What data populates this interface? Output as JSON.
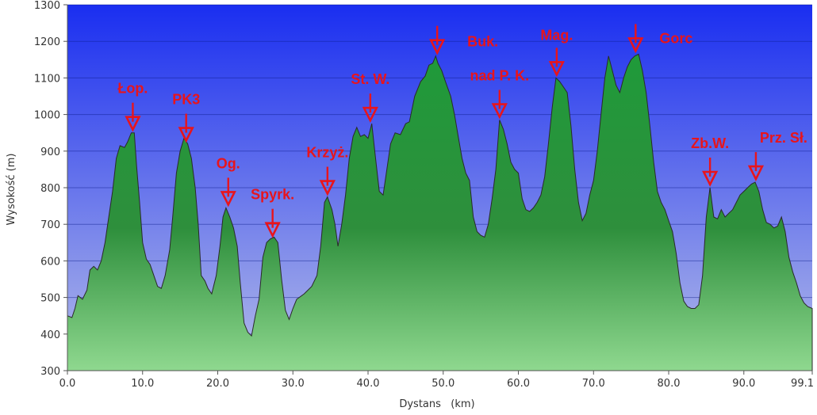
{
  "chart_data": {
    "type": "area",
    "xlabel": "Dystans   (km)",
    "ylabel": "Wysokość (m)",
    "xlim": [
      0,
      99.1
    ],
    "ylim": [
      300,
      1300
    ],
    "x_ticks": [
      {
        "v": 0,
        "label": "0.0"
      },
      {
        "v": 10,
        "label": "10.0"
      },
      {
        "v": 20,
        "label": "20.0"
      },
      {
        "v": 30,
        "label": "30.0"
      },
      {
        "v": 40,
        "label": "40.0"
      },
      {
        "v": 50,
        "label": "50.0"
      },
      {
        "v": 60,
        "label": "60.0"
      },
      {
        "v": 70,
        "label": "70.0"
      },
      {
        "v": 80,
        "label": "80.0"
      },
      {
        "v": 90,
        "label": "90.0"
      },
      {
        "v": 99.1,
        "label": "99.1"
      }
    ],
    "y_ticks": [
      300,
      400,
      500,
      600,
      700,
      800,
      900,
      1000,
      1100,
      1200,
      1300
    ],
    "grid": true,
    "colors": {
      "plot_bg_top": "#1a2ef0",
      "plot_bg_bottom": "#b4bce8",
      "fill_top": "#1f9a3a",
      "fill_bottom": "#8fd88f",
      "line": "#2a2a2a",
      "annotation": "#e8141c"
    },
    "profile": [
      [
        0,
        450
      ],
      [
        0.6,
        445
      ],
      [
        1,
        470
      ],
      [
        1.4,
        505
      ],
      [
        2,
        495
      ],
      [
        2.6,
        520
      ],
      [
        3,
        575
      ],
      [
        3.5,
        585
      ],
      [
        4,
        575
      ],
      [
        4.5,
        600
      ],
      [
        5,
        650
      ],
      [
        5.5,
        720
      ],
      [
        6,
        790
      ],
      [
        6.5,
        880
      ],
      [
        7,
        915
      ],
      [
        7.6,
        910
      ],
      [
        8,
        925
      ],
      [
        8.5,
        950
      ],
      [
        8.9,
        950
      ],
      [
        9.2,
        860
      ],
      [
        9.6,
        760
      ],
      [
        10,
        650
      ],
      [
        10.5,
        605
      ],
      [
        11,
        590
      ],
      [
        11.5,
        560
      ],
      [
        12,
        530
      ],
      [
        12.5,
        525
      ],
      [
        13,
        560
      ],
      [
        13.6,
        630
      ],
      [
        14,
        720
      ],
      [
        14.5,
        840
      ],
      [
        15,
        900
      ],
      [
        15.5,
        935
      ],
      [
        16,
        920
      ],
      [
        16.5,
        880
      ],
      [
        17,
        800
      ],
      [
        17.4,
        700
      ],
      [
        17.8,
        560
      ],
      [
        18.3,
        545
      ],
      [
        18.7,
        525
      ],
      [
        19.2,
        510
      ],
      [
        19.8,
        560
      ],
      [
        20.3,
        640
      ],
      [
        20.7,
        720
      ],
      [
        21.1,
        745
      ],
      [
        21.6,
        720
      ],
      [
        22.1,
        690
      ],
      [
        22.6,
        640
      ],
      [
        23,
        540
      ],
      [
        23.5,
        430
      ],
      [
        24,
        405
      ],
      [
        24.5,
        395
      ],
      [
        25,
        450
      ],
      [
        25.5,
        495
      ],
      [
        26,
        610
      ],
      [
        26.5,
        650
      ],
      [
        27,
        660
      ],
      [
        27.5,
        665
      ],
      [
        28,
        650
      ],
      [
        28.5,
        550
      ],
      [
        29,
        465
      ],
      [
        29.5,
        440
      ],
      [
        30,
        470
      ],
      [
        30.5,
        495
      ],
      [
        31.5,
        510
      ],
      [
        32.5,
        530
      ],
      [
        33.2,
        560
      ],
      [
        33.7,
        640
      ],
      [
        34.2,
        760
      ],
      [
        34.6,
        775
      ],
      [
        35.2,
        740
      ],
      [
        35.6,
        700
      ],
      [
        36,
        640
      ],
      [
        36.5,
        700
      ],
      [
        37,
        780
      ],
      [
        37.5,
        880
      ],
      [
        38,
        940
      ],
      [
        38.5,
        965
      ],
      [
        39,
        940
      ],
      [
        39.5,
        945
      ],
      [
        40,
        935
      ],
      [
        40.5,
        975
      ],
      [
        41,
        880
      ],
      [
        41.5,
        790
      ],
      [
        42,
        780
      ],
      [
        42.5,
        850
      ],
      [
        43,
        920
      ],
      [
        43.6,
        950
      ],
      [
        44.3,
        945
      ],
      [
        45,
        975
      ],
      [
        45.5,
        980
      ],
      [
        46.2,
        1050
      ],
      [
        47,
        1090
      ],
      [
        47.6,
        1105
      ],
      [
        48.1,
        1135
      ],
      [
        48.6,
        1140
      ],
      [
        49,
        1160
      ],
      [
        49.3,
        1140
      ],
      [
        49.8,
        1120
      ],
      [
        50.3,
        1090
      ],
      [
        51,
        1050
      ],
      [
        51.5,
        1000
      ],
      [
        52,
        940
      ],
      [
        52.5,
        880
      ],
      [
        53,
        840
      ],
      [
        53.5,
        820
      ],
      [
        54,
        720
      ],
      [
        54.5,
        680
      ],
      [
        55,
        670
      ],
      [
        55.5,
        665
      ],
      [
        56,
        700
      ],
      [
        56.5,
        770
      ],
      [
        57,
        850
      ],
      [
        57.5,
        985
      ],
      [
        58,
        960
      ],
      [
        58.5,
        920
      ],
      [
        59,
        870
      ],
      [
        59.5,
        850
      ],
      [
        60,
        840
      ],
      [
        60.5,
        770
      ],
      [
        61,
        740
      ],
      [
        61.5,
        735
      ],
      [
        62,
        745
      ],
      [
        62.5,
        760
      ],
      [
        63,
        780
      ],
      [
        63.5,
        830
      ],
      [
        64,
        920
      ],
      [
        64.5,
        1020
      ],
      [
        65,
        1100
      ],
      [
        65.5,
        1090
      ],
      [
        66,
        1075
      ],
      [
        66.5,
        1060
      ],
      [
        67,
        970
      ],
      [
        67.5,
        850
      ],
      [
        68,
        760
      ],
      [
        68.5,
        710
      ],
      [
        69,
        730
      ],
      [
        69.5,
        780
      ],
      [
        70,
        820
      ],
      [
        70.5,
        900
      ],
      [
        71,
        1000
      ],
      [
        71.5,
        1100
      ],
      [
        72,
        1160
      ],
      [
        72.5,
        1120
      ],
      [
        73,
        1080
      ],
      [
        73.5,
        1060
      ],
      [
        74,
        1100
      ],
      [
        74.5,
        1130
      ],
      [
        75,
        1150
      ],
      [
        75.5,
        1160
      ],
      [
        76,
        1165
      ],
      [
        76.5,
        1120
      ],
      [
        77,
        1060
      ],
      [
        77.5,
        970
      ],
      [
        78,
        870
      ],
      [
        78.5,
        790
      ],
      [
        79,
        760
      ],
      [
        79.5,
        740
      ],
      [
        80,
        710
      ],
      [
        80.5,
        680
      ],
      [
        81,
        620
      ],
      [
        81.5,
        540
      ],
      [
        82,
        490
      ],
      [
        82.5,
        475
      ],
      [
        83,
        470
      ],
      [
        83.5,
        470
      ],
      [
        84,
        480
      ],
      [
        84.5,
        560
      ],
      [
        85,
        720
      ],
      [
        85.5,
        800
      ],
      [
        86,
        720
      ],
      [
        86.5,
        715
      ],
      [
        87,
        740
      ],
      [
        87.5,
        720
      ],
      [
        88,
        730
      ],
      [
        88.5,
        740
      ],
      [
        89,
        760
      ],
      [
        89.5,
        780
      ],
      [
        90,
        790
      ],
      [
        90.5,
        800
      ],
      [
        91,
        810
      ],
      [
        91.5,
        815
      ],
      [
        92,
        790
      ],
      [
        92.5,
        740
      ],
      [
        93,
        705
      ],
      [
        93.5,
        700
      ],
      [
        94,
        690
      ],
      [
        94.5,
        695
      ],
      [
        95,
        720
      ],
      [
        95.5,
        680
      ],
      [
        96,
        610
      ],
      [
        96.5,
        570
      ],
      [
        97,
        540
      ],
      [
        97.5,
        505
      ],
      [
        98,
        485
      ],
      [
        98.5,
        475
      ],
      [
        99.1,
        470
      ]
    ],
    "annotations": [
      {
        "label": "Łop.",
        "x": 8.7,
        "y": 950
      },
      {
        "label": "PK3",
        "x": 15.8,
        "y": 920
      },
      {
        "label": "Og.",
        "x": 21.4,
        "y": 745
      },
      {
        "label": "Spyrk.",
        "x": 27.3,
        "y": 660
      },
      {
        "label": "Krzyż.",
        "x": 34.6,
        "y": 775
      },
      {
        "label": "St. W.",
        "x": 40.3,
        "y": 975
      },
      {
        "label": "Buk.",
        "x": 49.2,
        "y": 1160
      },
      {
        "label": "nad P. K.",
        "x": 57.5,
        "y": 985
      },
      {
        "label": "Mag.",
        "x": 65.1,
        "y": 1100
      },
      {
        "label": "Gorc",
        "x": 75.6,
        "y": 1165
      },
      {
        "label": "Zb.W.",
        "x": 85.5,
        "y": 800
      },
      {
        "label": "Prz. Sł.",
        "x": 91.6,
        "y": 815
      }
    ]
  }
}
